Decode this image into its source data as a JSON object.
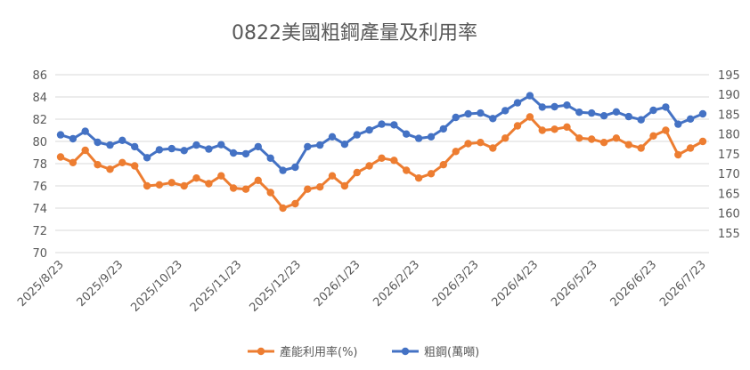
{
  "chart_data": {
    "type": "line",
    "title": "0822美國粗鋼產量及利用率",
    "x_tick_labels": [
      "2025/8/23",
      "2025/9/23",
      "2025/10/23",
      "2025/11/23",
      "2025/12/23",
      "2026/1/23",
      "2026/2/23",
      "2026/3/23",
      "2026/4/23",
      "2026/5/23",
      "2026/6/23",
      "2026/7/23"
    ],
    "y_left": {
      "min": 70,
      "max": 86,
      "step": 2,
      "ticks": [
        "70",
        "72",
        "74",
        "76",
        "78",
        "80",
        "82",
        "84",
        "86"
      ]
    },
    "y_right": {
      "min": 150,
      "max": 195,
      "step": 5,
      "ticks": [
        "155",
        "160",
        "165",
        "170",
        "175",
        "180",
        "185",
        "190",
        "195"
      ]
    },
    "legend_position": "bottom",
    "grid": true,
    "series": [
      {
        "name": "產能利用率(%)",
        "axis": "left",
        "color": "#ED7D31",
        "values": [
          78.6,
          78.1,
          79.2,
          77.9,
          77.5,
          78.1,
          77.8,
          76.0,
          76.1,
          76.3,
          76.0,
          76.7,
          76.2,
          76.9,
          75.8,
          75.7,
          76.5,
          75.4,
          74.0,
          74.4,
          75.7,
          75.9,
          76.9,
          76.0,
          77.2,
          77.8,
          78.5,
          78.3,
          77.4,
          76.7,
          77.1,
          77.9,
          79.1,
          79.8,
          79.9,
          79.4,
          80.3,
          81.4,
          82.2,
          81.0,
          81.1,
          81.3,
          80.3,
          80.2,
          79.9,
          80.3,
          79.7,
          79.4,
          80.5,
          81.0,
          78.8,
          79.4,
          80.0
        ]
      },
      {
        "name": "粗鋼(萬噸)",
        "axis": "right",
        "color": "#4472C4",
        "values": [
          179.8,
          178.8,
          180.7,
          177.9,
          177.2,
          178.4,
          176.8,
          174.0,
          176.0,
          176.3,
          175.8,
          177.2,
          176.2,
          177.3,
          175.2,
          175.0,
          176.8,
          173.9,
          170.8,
          171.6,
          176.8,
          177.2,
          179.3,
          177.4,
          179.8,
          181.0,
          182.5,
          182.3,
          180.0,
          178.9,
          179.3,
          181.3,
          184.2,
          185.1,
          185.3,
          183.9,
          185.9,
          187.9,
          189.7,
          186.8,
          186.9,
          187.3,
          185.5,
          185.3,
          184.6,
          185.6,
          184.4,
          183.6,
          186.0,
          186.8,
          182.5,
          183.8,
          185.1
        ]
      }
    ]
  }
}
